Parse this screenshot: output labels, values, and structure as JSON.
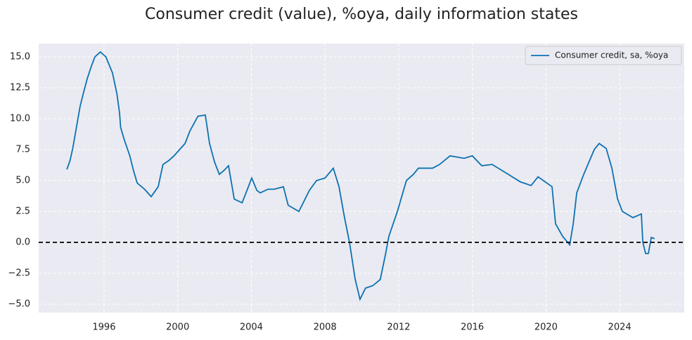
{
  "chart_data": {
    "type": "line",
    "title": "Consumer credit (value), %oya, daily information states",
    "x": [
      1993.98,
      1994.15,
      1994.3,
      1994.5,
      1994.7,
      1994.9,
      1995.1,
      1995.3,
      1995.5,
      1995.8,
      1996.1,
      1996.46,
      1996.7,
      1996.84,
      1996.9,
      1997.1,
      1997.4,
      1997.6,
      1997.8,
      1998.2,
      1998.56,
      1998.94,
      1999.2,
      1999.5,
      1999.8,
      2000.1,
      2000.4,
      2000.66,
      2001.1,
      2001.5,
      2001.73,
      2002.0,
      2002.26,
      2002.5,
      2002.76,
      2003.07,
      2003.5,
      2004.02,
      2004.3,
      2004.48,
      2004.9,
      2005.24,
      2005.74,
      2006.0,
      2006.58,
      2007.15,
      2007.54,
      2008.0,
      2008.45,
      2008.76,
      2009.06,
      2009.33,
      2009.64,
      2009.9,
      2010.2,
      2010.6,
      2011.0,
      2011.28,
      2011.47,
      2011.93,
      2012.42,
      2012.8,
      2013.07,
      2013.84,
      2014.22,
      2014.79,
      2015.56,
      2016.0,
      2016.51,
      2017.08,
      2017.85,
      2018.6,
      2019.19,
      2019.57,
      2019.95,
      2020.33,
      2020.52,
      2020.9,
      2021.29,
      2021.48,
      2021.67,
      2022.05,
      2022.62,
      2022.89,
      2023.27,
      2023.58,
      2023.89,
      2024.15,
      2024.72,
      2025.18,
      2025.26,
      2025.41,
      2025.56,
      2025.72,
      2025.9
    ],
    "series": [
      {
        "name": "Consumer credit, sa, %oya",
        "color": "#0b72b0",
        "values": [
          5.9,
          6.6,
          7.6,
          9.3,
          11.0,
          12.2,
          13.3,
          14.2,
          15.0,
          15.4,
          15.0,
          13.7,
          12.0,
          10.5,
          9.3,
          8.3,
          7.0,
          5.8,
          4.8,
          4.3,
          3.7,
          4.5,
          6.3,
          6.6,
          7.0,
          7.5,
          8.0,
          9.0,
          10.2,
          10.3,
          8.0,
          6.5,
          5.5,
          5.8,
          6.2,
          3.5,
          3.2,
          5.2,
          4.2,
          4.0,
          4.3,
          4.3,
          4.5,
          3.0,
          2.5,
          4.2,
          5.0,
          5.2,
          6.0,
          4.5,
          2.0,
          0.0,
          -3.0,
          -4.6,
          -3.7,
          -3.5,
          -3.0,
          -1.0,
          0.5,
          2.5,
          5.0,
          5.5,
          6.0,
          6.0,
          6.3,
          7.0,
          6.8,
          7.0,
          6.2,
          6.3,
          5.6,
          4.9,
          4.6,
          5.3,
          4.9,
          4.5,
          1.5,
          0.5,
          -0.2,
          1.5,
          4.0,
          5.5,
          7.5,
          8.0,
          7.6,
          6.0,
          3.5,
          2.5,
          2.0,
          2.3,
          0.0,
          -0.9,
          -0.9,
          0.4,
          0.3
        ]
      }
    ],
    "xlim": [
      1992.45,
      2027.51
    ],
    "xticks": [
      1996,
      2000,
      2004,
      2008,
      2012,
      2016,
      2020,
      2024
    ],
    "ylim": [
      -5.68,
      16.08
    ],
    "yticks": [
      {
        "value": -5,
        "label": "−5.0"
      },
      {
        "value": -2.5,
        "label": "−2.5"
      },
      {
        "value": 0,
        "label": "0.0"
      },
      2.5,
      {
        "value": 5,
        "label": "5.0"
      },
      7.5,
      {
        "value": 10,
        "label": "10.0"
      },
      12.5,
      {
        "value": 15,
        "label": "15.0"
      }
    ],
    "hline": 0,
    "grid": true,
    "legend": "upper right"
  }
}
